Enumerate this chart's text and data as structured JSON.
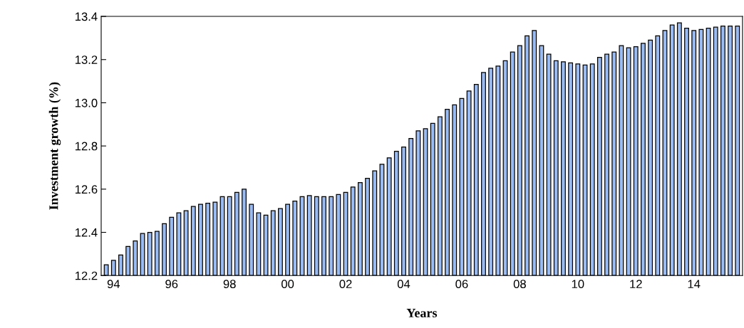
{
  "chart_data": {
    "type": "bar",
    "xlabel": "Years",
    "ylabel": "Investment growth (%)",
    "categories": [
      null,
      "94",
      null,
      null,
      null,
      null,
      null,
      null,
      null,
      "96",
      null,
      null,
      null,
      null,
      null,
      null,
      null,
      "98",
      null,
      null,
      null,
      null,
      null,
      null,
      null,
      "00",
      null,
      null,
      null,
      null,
      null,
      null,
      null,
      "02",
      null,
      null,
      null,
      null,
      null,
      null,
      null,
      "04",
      null,
      null,
      null,
      null,
      null,
      null,
      null,
      "06",
      null,
      null,
      null,
      null,
      null,
      null,
      null,
      "08",
      null,
      null,
      null,
      null,
      null,
      null,
      null,
      "10",
      null,
      null,
      null,
      null,
      null,
      null,
      null,
      "12",
      null,
      null,
      null,
      null,
      null,
      null,
      null,
      "14",
      null,
      null,
      null,
      null,
      null,
      null
    ],
    "values": [
      12.25,
      12.27,
      12.295,
      12.335,
      12.36,
      12.395,
      12.4,
      12.405,
      12.44,
      12.47,
      12.49,
      12.5,
      12.52,
      12.53,
      12.535,
      12.54,
      12.565,
      12.565,
      12.585,
      12.6,
      12.53,
      12.49,
      12.48,
      12.5,
      12.51,
      12.53,
      12.545,
      12.565,
      12.57,
      12.565,
      12.565,
      12.565,
      12.575,
      12.585,
      12.61,
      12.63,
      12.65,
      12.685,
      12.715,
      12.745,
      12.775,
      12.795,
      12.835,
      12.87,
      12.88,
      12.905,
      12.935,
      12.97,
      12.99,
      13.02,
      13.055,
      13.085,
      13.14,
      13.16,
      13.17,
      13.195,
      13.235,
      13.265,
      13.31,
      13.335,
      13.265,
      13.225,
      13.195,
      13.19,
      13.185,
      13.18,
      13.175,
      13.18,
      13.21,
      13.225,
      13.235,
      13.265,
      13.255,
      13.26,
      13.275,
      13.29,
      13.31,
      13.335,
      13.36,
      13.37,
      13.345,
      13.335,
      13.34,
      13.345,
      13.35,
      13.355,
      13.355,
      13.355
    ],
    "color": "#99bbf2",
    "ylim": [
      12.2,
      13.4
    ],
    "yticks": [
      {
        "value": 12.2,
        "label": "12.2"
      },
      {
        "value": 12.4,
        "label": "12.4"
      },
      {
        "value": 12.6,
        "label": "12.6"
      },
      {
        "value": 12.8,
        "label": "12.8"
      },
      {
        "value": 13.0,
        "label": "13.0"
      },
      {
        "value": 13.2,
        "label": "13.2"
      },
      {
        "value": 13.4,
        "label": "13.4"
      }
    ],
    "grid": false
  }
}
